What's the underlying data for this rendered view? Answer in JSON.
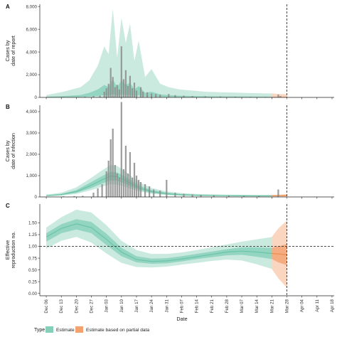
{
  "colors": {
    "estimate": "#66C2A5",
    "partial": "#F08A4B",
    "bars": "#8c8c8c",
    "axis": "#222222",
    "dashed": "#333333"
  },
  "legend": {
    "title": "Type",
    "items": [
      {
        "label": "Estimate",
        "color": "#66C2A5"
      },
      {
        "label": "Estimate based on partial data",
        "color": "#F08A4B"
      }
    ]
  },
  "chart_data": [
    {
      "panel": "A",
      "type": "bar",
      "ylabel": "Cases by\ndate of report",
      "xlabel": "",
      "ylim": [
        0,
        8200
      ],
      "yticks": [
        0,
        2000,
        4000,
        6000,
        8000
      ],
      "ytick_labels": [
        "0",
        "2,000",
        "4,000",
        "6,000",
        "8,000"
      ],
      "dashed_vertical": "Mar 28",
      "bars": [
        {
          "date": "Dec 14",
          "value": 40
        },
        {
          "date": "Dec 21",
          "value": 30
        },
        {
          "date": "Dec 24",
          "value": 60
        },
        {
          "date": "Dec 28",
          "value": 120
        },
        {
          "date": "Dec 31",
          "value": 150
        },
        {
          "date": "Jan 02",
          "value": 500
        },
        {
          "date": "Jan 03",
          "value": 800
        },
        {
          "date": "Jan 04",
          "value": 1200
        },
        {
          "date": "Jan 05",
          "value": 2600
        },
        {
          "date": "Jan 06",
          "value": 1800
        },
        {
          "date": "Jan 07",
          "value": 900
        },
        {
          "date": "Jan 08",
          "value": 1100
        },
        {
          "date": "Jan 09",
          "value": 700
        },
        {
          "date": "Jan 10",
          "value": 4500
        },
        {
          "date": "Jan 11",
          "value": 1600
        },
        {
          "date": "Jan 12",
          "value": 2400
        },
        {
          "date": "Jan 13",
          "value": 1000
        },
        {
          "date": "Jan 14",
          "value": 1900
        },
        {
          "date": "Jan 15",
          "value": 800
        },
        {
          "date": "Jan 16",
          "value": 1300
        },
        {
          "date": "Jan 17",
          "value": 600
        },
        {
          "date": "Jan 19",
          "value": 900
        },
        {
          "date": "Jan 20",
          "value": 500
        },
        {
          "date": "Jan 22",
          "value": 450
        },
        {
          "date": "Jan 24",
          "value": 350
        },
        {
          "date": "Jan 26",
          "value": 300
        },
        {
          "date": "Jan 28",
          "value": 250
        },
        {
          "date": "Feb 01",
          "value": 300
        },
        {
          "date": "Feb 04",
          "value": 200
        },
        {
          "date": "Feb 08",
          "value": 150
        },
        {
          "date": "Feb 12",
          "value": 120
        },
        {
          "date": "Feb 18",
          "value": 100
        },
        {
          "date": "Feb 25",
          "value": 80
        },
        {
          "date": "Mar 04",
          "value": 60
        },
        {
          "date": "Mar 11",
          "value": 50
        },
        {
          "date": "Mar 18",
          "value": 40
        },
        {
          "date": "Mar 24",
          "value": 250
        },
        {
          "date": "Mar 25",
          "value": 120
        }
      ],
      "bands": [
        {
          "name": "Estimate",
          "x": [
            "Dec 06",
            "Dec 10",
            "Dec 14",
            "Dec 18",
            "Dec 22",
            "Dec 26",
            "Dec 30",
            "Jan 02",
            "Jan 04",
            "Jan 06",
            "Jan 08",
            "Jan 10",
            "Jan 12",
            "Jan 14",
            "Jan 16",
            "Jan 18",
            "Jan 21",
            "Jan 24",
            "Jan 28",
            "Feb 01",
            "Feb 06",
            "Feb 12",
            "Feb 18",
            "Feb 25",
            "Mar 04",
            "Mar 11",
            "Mar 18",
            "Mar 21"
          ],
          "upper90": [
            200,
            350,
            500,
            700,
            900,
            1500,
            2800,
            4500,
            3800,
            7800,
            3500,
            7000,
            4800,
            6500,
            3200,
            5000,
            1800,
            2500,
            1200,
            900,
            700,
            600,
            500,
            450,
            420,
            380,
            350,
            350
          ],
          "lower90": [
            0,
            0,
            0,
            0,
            0,
            0,
            0,
            0,
            0,
            0,
            0,
            0,
            0,
            0,
            0,
            0,
            0,
            0,
            0,
            0,
            0,
            0,
            0,
            0,
            0,
            0,
            0,
            0
          ],
          "upper50": [
            60,
            90,
            120,
            160,
            220,
            400,
            700,
            1100,
            900,
            1600,
            900,
            1500,
            1100,
            1300,
            700,
            1000,
            400,
            500,
            260,
            200,
            150,
            120,
            100,
            90,
            80,
            70,
            60,
            60
          ],
          "lower50": [
            0,
            10,
            20,
            30,
            40,
            80,
            120,
            200,
            150,
            300,
            150,
            250,
            200,
            220,
            120,
            180,
            80,
            90,
            50,
            40,
            30,
            25,
            20,
            18,
            15,
            12,
            10,
            10
          ]
        },
        {
          "name": "Estimate based on partial data",
          "x": [
            "Mar 21",
            "Mar 24",
            "Mar 28"
          ],
          "upper90": [
            350,
            300,
            280
          ],
          "lower90": [
            0,
            0,
            0
          ],
          "upper50": [
            60,
            55,
            50
          ],
          "lower50": [
            10,
            10,
            10
          ]
        }
      ]
    },
    {
      "panel": "B",
      "type": "bar",
      "ylabel": "Cases by\ndate of infection",
      "xlabel": "",
      "ylim": [
        0,
        4300
      ],
      "yticks": [
        0,
        1000,
        2000,
        3000,
        4000
      ],
      "ytick_labels": [
        "0",
        "1,000",
        "2,000",
        "3,000",
        "4,000"
      ],
      "dashed_vertical": "Mar 28",
      "bars": [
        {
          "date": "Dec 14",
          "value": 30
        },
        {
          "date": "Dec 19",
          "value": 40
        },
        {
          "date": "Dec 23",
          "value": 50
        },
        {
          "date": "Dec 28",
          "value": 200
        },
        {
          "date": "Dec 30",
          "value": 400
        },
        {
          "date": "Jan 01",
          "value": 600
        },
        {
          "date": "Jan 03",
          "value": 1200
        },
        {
          "date": "Jan 04",
          "value": 1700
        },
        {
          "date": "Jan 05",
          "value": 2700
        },
        {
          "date": "Jan 06",
          "value": 3200
        },
        {
          "date": "Jan 07",
          "value": 1500
        },
        {
          "date": "Jan 08",
          "value": 1100
        },
        {
          "date": "Jan 09",
          "value": 900
        },
        {
          "date": "Jan 10",
          "value": 4450
        },
        {
          "date": "Jan 11",
          "value": 1300
        },
        {
          "date": "Jan 12",
          "value": 2400
        },
        {
          "date": "Jan 13",
          "value": 1100
        },
        {
          "date": "Jan 14",
          "value": 2100
        },
        {
          "date": "Jan 15",
          "value": 900
        },
        {
          "date": "Jan 16",
          "value": 1600
        },
        {
          "date": "Jan 17",
          "value": 1000
        },
        {
          "date": "Jan 18",
          "value": 800
        },
        {
          "date": "Jan 19",
          "value": 700
        },
        {
          "date": "Jan 21",
          "value": 600
        },
        {
          "date": "Jan 23",
          "value": 500
        },
        {
          "date": "Jan 25",
          "value": 350
        },
        {
          "date": "Jan 28",
          "value": 300
        },
        {
          "date": "Jan 31",
          "value": 800
        },
        {
          "date": "Feb 04",
          "value": 200
        },
        {
          "date": "Feb 08",
          "value": 150
        },
        {
          "date": "Feb 12",
          "value": 120
        },
        {
          "date": "Feb 16",
          "value": 100
        },
        {
          "date": "Feb 22",
          "value": 80
        },
        {
          "date": "Mar 01",
          "value": 60
        },
        {
          "date": "Mar 08",
          "value": 50
        },
        {
          "date": "Mar 15",
          "value": 40
        },
        {
          "date": "Mar 24",
          "value": 350
        }
      ],
      "bands": [
        {
          "name": "Estimate",
          "x": [
            "Dec 06",
            "Dec 13",
            "Dec 20",
            "Dec 27",
            "Jan 01",
            "Jan 05",
            "Jan 08",
            "Jan 11",
            "Jan 15",
            "Jan 19",
            "Jan 24",
            "Jan 31",
            "Feb 07",
            "Feb 14",
            "Feb 21",
            "Feb 28",
            "Mar 07",
            "Mar 14",
            "Mar 21"
          ],
          "median": [
            60,
            110,
            250,
            550,
            800,
            980,
            950,
            820,
            600,
            400,
            250,
            150,
            100,
            80,
            70,
            60,
            55,
            50,
            50
          ],
          "upper90": [
            110,
            200,
            450,
            900,
            1250,
            1500,
            1450,
            1250,
            950,
            650,
            420,
            260,
            180,
            140,
            120,
            110,
            100,
            95,
            95
          ],
          "lower90": [
            30,
            60,
            140,
            320,
            480,
            600,
            580,
            500,
            360,
            240,
            150,
            85,
            55,
            40,
            35,
            30,
            28,
            25,
            25
          ],
          "upper50": [
            80,
            140,
            320,
            700,
            980,
            1180,
            1150,
            990,
            750,
            510,
            330,
            200,
            135,
            105,
            90,
            80,
            75,
            70,
            70
          ],
          "lower50": [
            45,
            85,
            190,
            420,
            630,
            780,
            760,
            650,
            470,
            310,
            190,
            115,
            75,
            58,
            50,
            45,
            40,
            38,
            38
          ]
        },
        {
          "name": "Estimate based on partial data",
          "x": [
            "Mar 21",
            "Mar 24",
            "Mar 28"
          ],
          "median": [
            50,
            55,
            60
          ],
          "upper90": [
            95,
            110,
            130
          ],
          "lower90": [
            25,
            20,
            18
          ],
          "upper50": [
            70,
            80,
            90
          ],
          "lower50": [
            38,
            35,
            32
          ]
        }
      ]
    },
    {
      "panel": "C",
      "type": "line",
      "ylabel": "Effective\nreproduction no.",
      "xlabel": "Date",
      "ylim": [
        -0.05,
        1.9
      ],
      "yticks": [
        0,
        0.25,
        0.5,
        0.75,
        1.0,
        1.25,
        1.5
      ],
      "ytick_labels": [
        "0.00",
        "0.25",
        "0.50",
        "0.75",
        "1.00",
        "1.25",
        "1.50"
      ],
      "hline": 1.0,
      "dashed_vertical": "Mar 28",
      "x_ticks": [
        "Dec 06",
        "Dec 13",
        "Dec 20",
        "Dec 27",
        "Jan 03",
        "Jan 10",
        "Jan 17",
        "Jan 24",
        "Jan 31",
        "Feb 07",
        "Feb 14",
        "Feb 21",
        "Feb 28",
        "Mar 07",
        "Mar 14",
        "Mar 21",
        "Mar 28",
        "Apr 04",
        "Apr 11",
        "Apr 18"
      ],
      "bands": [
        {
          "name": "Estimate",
          "x": [
            "Dec 06",
            "Dec 13",
            "Dec 20",
            "Dec 27",
            "Jan 03",
            "Jan 10",
            "Jan 17",
            "Jan 24",
            "Jan 31",
            "Feb 07",
            "Feb 14",
            "Feb 21",
            "Feb 28",
            "Mar 07",
            "Mar 14",
            "Mar 21"
          ],
          "median": [
            1.2,
            1.38,
            1.48,
            1.4,
            1.15,
            0.88,
            0.72,
            0.68,
            0.69,
            0.73,
            0.78,
            0.83,
            0.88,
            0.9,
            0.88,
            0.85
          ],
          "upper90": [
            1.4,
            1.62,
            1.78,
            1.72,
            1.45,
            1.12,
            0.92,
            0.84,
            0.84,
            0.87,
            0.92,
            0.98,
            1.04,
            1.1,
            1.15,
            1.2
          ],
          "lower90": [
            0.95,
            1.12,
            1.2,
            1.08,
            0.85,
            0.65,
            0.56,
            0.55,
            0.57,
            0.61,
            0.65,
            0.69,
            0.72,
            0.7,
            0.62,
            0.52
          ],
          "upper50": [
            1.28,
            1.47,
            1.58,
            1.52,
            1.27,
            0.97,
            0.79,
            0.74,
            0.75,
            0.79,
            0.84,
            0.89,
            0.94,
            0.98,
            0.98,
            0.97
          ],
          "lower50": [
            1.1,
            1.28,
            1.36,
            1.28,
            1.03,
            0.79,
            0.66,
            0.63,
            0.64,
            0.68,
            0.73,
            0.77,
            0.81,
            0.82,
            0.78,
            0.73
          ]
        },
        {
          "name": "Estimate based on partial data",
          "x": [
            "Mar 21",
            "Mar 24",
            "Mar 28"
          ],
          "median": [
            0.85,
            0.84,
            0.82
          ],
          "upper90": [
            1.2,
            1.38,
            1.55
          ],
          "lower90": [
            0.52,
            0.32,
            0.12
          ],
          "upper50": [
            0.97,
            1.0,
            1.05
          ],
          "lower50": [
            0.73,
            0.66,
            0.6
          ]
        }
      ]
    }
  ]
}
